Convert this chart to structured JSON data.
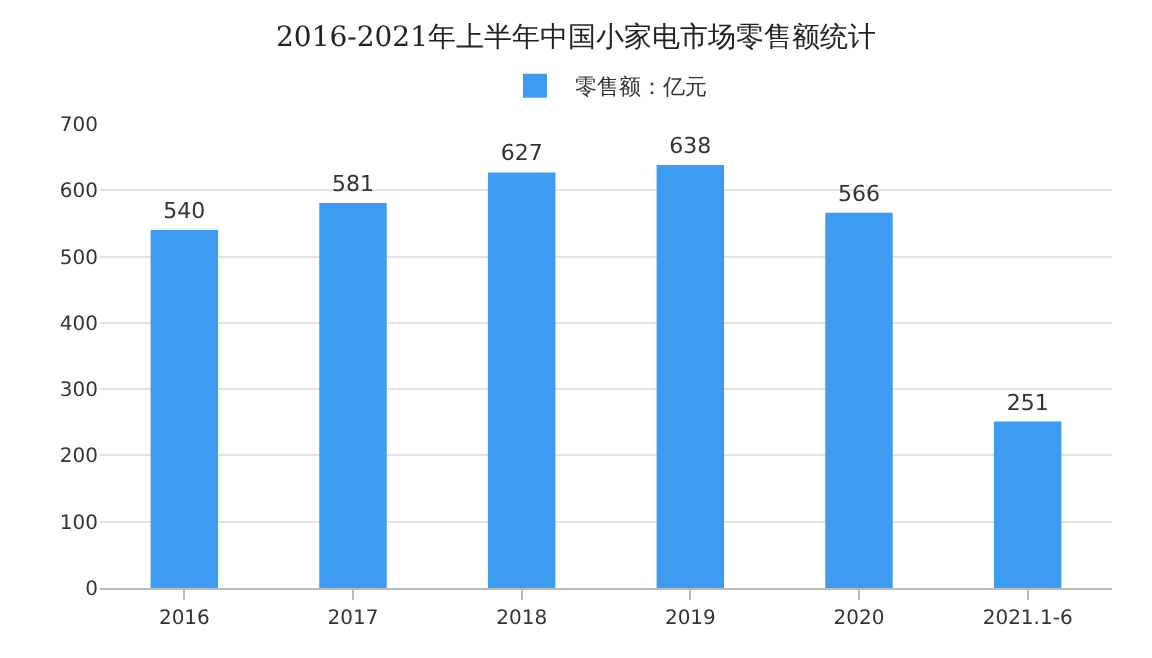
{
  "chart_data": {
    "type": "bar",
    "title": "2016-2021年上半年中国小家电市场零售额统计",
    "categories": [
      "2016",
      "2017",
      "2018",
      "2019",
      "2020",
      "2021.1-6"
    ],
    "series": [
      {
        "name": "零售额：亿元",
        "color": "#3d9cf0",
        "values": [
          540,
          581,
          627,
          638,
          566,
          251
        ]
      }
    ],
    "ylim": [
      0,
      700
    ],
    "yticks": [
      0,
      100,
      200,
      300,
      400,
      500,
      600,
      700
    ],
    "grid": "y",
    "legend": "top",
    "data_labels": true
  }
}
